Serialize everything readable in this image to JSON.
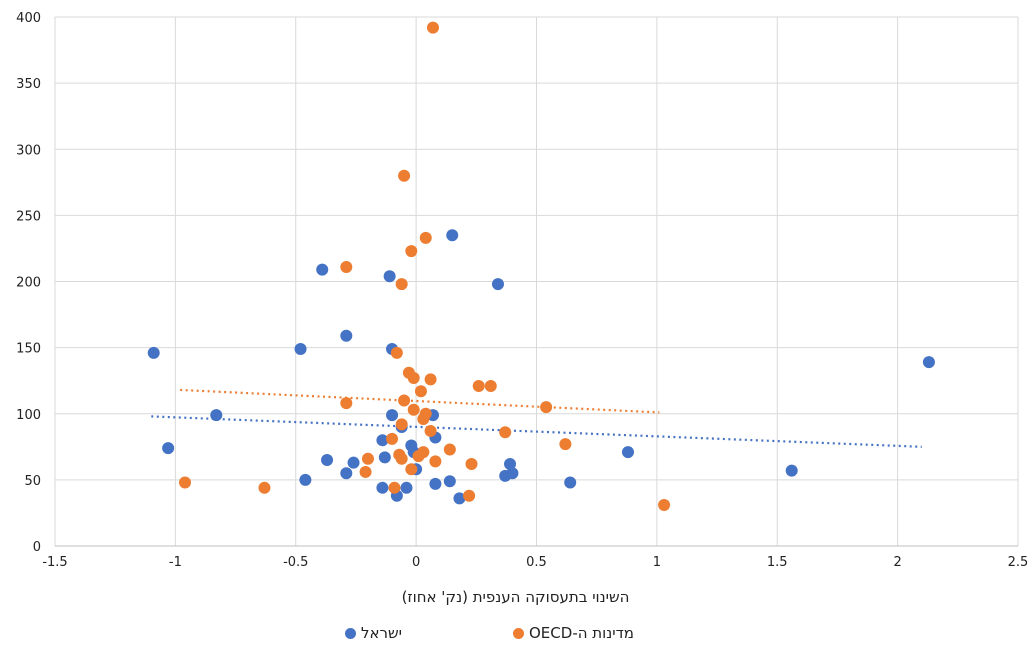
{
  "chart_data": {
    "type": "scatter",
    "xlabel": "השינוי בתעסוקה הענפית (נק' אחוז)",
    "ylabel": "",
    "title": "",
    "xlim": [
      -1.5,
      2.5
    ],
    "ylim": [
      0,
      400
    ],
    "x_ticks": [
      "-1.5",
      "-1",
      "-0.5",
      "0",
      "0.5",
      "1",
      "1.5",
      "2",
      "2.5"
    ],
    "y_ticks": [
      "0",
      "50",
      "100",
      "150",
      "200",
      "250",
      "300",
      "350",
      "400"
    ],
    "grid": "vertical-and-horizontal",
    "legend_position": "bottom",
    "series": [
      {
        "name": "ישראל",
        "color": "#4472C4",
        "trendline": {
          "x": [
            -1.1,
            2.1
          ],
          "y": [
            98,
            75
          ]
        },
        "points": [
          [
            -1.09,
            146
          ],
          [
            -1.03,
            74
          ],
          [
            -0.83,
            99
          ],
          [
            -0.48,
            149
          ],
          [
            -0.46,
            50
          ],
          [
            -0.39,
            209
          ],
          [
            -0.37,
            65
          ],
          [
            -0.29,
            159
          ],
          [
            -0.29,
            55
          ],
          [
            -0.26,
            63
          ],
          [
            -0.14,
            80
          ],
          [
            -0.13,
            67
          ],
          [
            -0.14,
            44
          ],
          [
            -0.11,
            204
          ],
          [
            -0.1,
            99
          ],
          [
            -0.1,
            149
          ],
          [
            -0.08,
            38
          ],
          [
            -0.06,
            90
          ],
          [
            -0.04,
            44
          ],
          [
            -0.02,
            76
          ],
          [
            -0.01,
            71
          ],
          [
            0.0,
            58
          ],
          [
            0.07,
            99
          ],
          [
            0.08,
            82
          ],
          [
            0.08,
            47
          ],
          [
            0.14,
            49
          ],
          [
            0.15,
            235
          ],
          [
            0.18,
            36
          ],
          [
            0.34,
            198
          ],
          [
            0.37,
            53
          ],
          [
            0.39,
            62
          ],
          [
            0.4,
            55
          ],
          [
            0.64,
            48
          ],
          [
            0.88,
            71
          ],
          [
            1.56,
            57
          ],
          [
            2.13,
            139
          ]
        ]
      },
      {
        "name": "מדינות ה-OECD",
        "color": "#ED7D31",
        "trendline": {
          "x": [
            -0.98,
            1.01
          ],
          "y": [
            118,
            101
          ]
        },
        "points": [
          [
            -0.96,
            48
          ],
          [
            -0.63,
            44
          ],
          [
            -0.29,
            211
          ],
          [
            -0.29,
            108
          ],
          [
            -0.21,
            56
          ],
          [
            -0.2,
            66
          ],
          [
            -0.1,
            81
          ],
          [
            -0.09,
            44
          ],
          [
            -0.08,
            146
          ],
          [
            -0.07,
            69
          ],
          [
            -0.06,
            198
          ],
          [
            -0.06,
            92
          ],
          [
            -0.05,
            280
          ],
          [
            -0.06,
            66
          ],
          [
            -0.05,
            110
          ],
          [
            -0.03,
            131
          ],
          [
            -0.02,
            223
          ],
          [
            -0.01,
            127
          ],
          [
            -0.01,
            103
          ],
          [
            -0.02,
            58
          ],
          [
            0.01,
            68
          ],
          [
            0.02,
            117
          ],
          [
            0.03,
            71
          ],
          [
            0.03,
            96
          ],
          [
            0.04,
            100
          ],
          [
            0.04,
            233
          ],
          [
            0.06,
            87
          ],
          [
            0.06,
            126
          ],
          [
            0.07,
            392
          ],
          [
            0.08,
            64
          ],
          [
            0.14,
            73
          ],
          [
            0.22,
            38
          ],
          [
            0.23,
            62
          ],
          [
            0.26,
            121
          ],
          [
            0.31,
            121
          ],
          [
            0.37,
            86
          ],
          [
            0.54,
            105
          ],
          [
            0.62,
            77
          ],
          [
            1.03,
            31
          ]
        ]
      }
    ]
  }
}
